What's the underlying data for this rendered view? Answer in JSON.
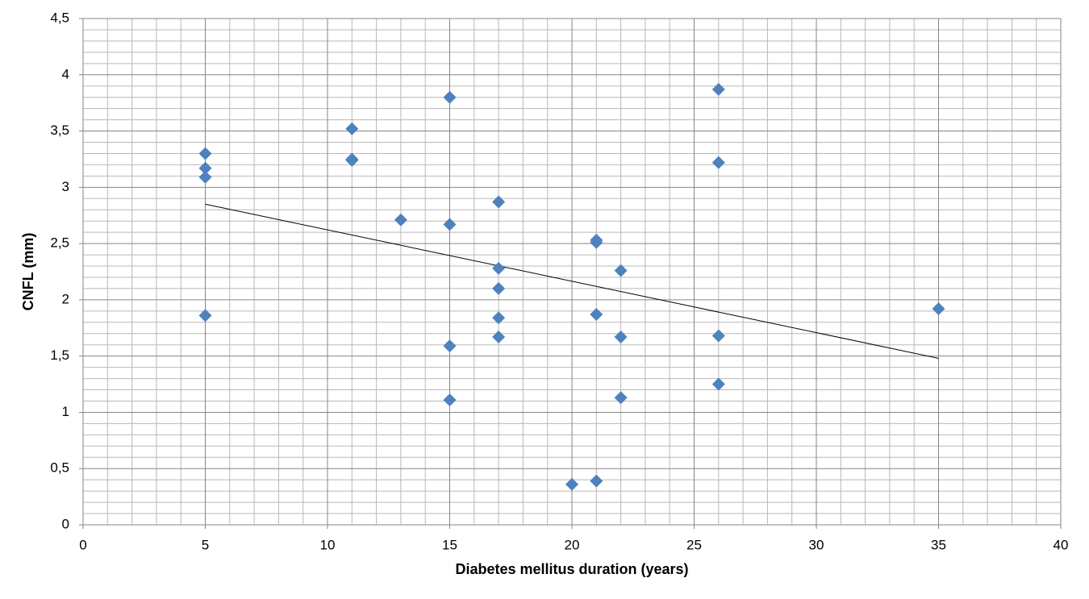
{
  "chart_data": {
    "type": "scatter",
    "x_label": "Diabetes mellitus duration (years)",
    "y_label": "CNFL (mm)",
    "series": [
      {
        "color": "#4f81bd",
        "x": [
          5,
          5,
          5,
          5,
          11,
          11,
          11,
          13,
          15,
          15,
          15,
          15,
          17,
          17,
          17,
          17,
          17,
          20,
          21,
          21,
          21,
          21,
          22,
          22,
          22,
          26,
          26,
          26,
          26,
          35
        ],
        "values": [
          3.3,
          3.17,
          3.09,
          1.86,
          3.52,
          3.25,
          3.24,
          2.71,
          3.8,
          2.67,
          1.59,
          1.11,
          2.87,
          2.28,
          2.1,
          1.84,
          1.67,
          0.36,
          2.53,
          2.51,
          1.87,
          0.39,
          2.26,
          1.67,
          1.13,
          3.87,
          3.22,
          1.68,
          1.25,
          1.92
        ]
      }
    ],
    "trendline": {
      "color": "#000000",
      "x": [
        5,
        35
      ],
      "values": [
        2.85,
        1.48
      ]
    },
    "xlim": [
      0,
      40
    ],
    "xticks": [
      0,
      5,
      10,
      15,
      20,
      25,
      30,
      35,
      40
    ],
    "ylim": [
      0,
      4.5
    ],
    "yticks": [
      0,
      {
        "value": 0.5,
        "label": "0,5"
      },
      1,
      {
        "value": 1.5,
        "label": "1,5"
      },
      2,
      {
        "value": 2.5,
        "label": "2,5"
      },
      3,
      {
        "value": 3.5,
        "label": "3,5"
      },
      4,
      {
        "value": 4.5,
        "label": "4,5"
      }
    ],
    "grid": true,
    "minor_grid": true
  }
}
